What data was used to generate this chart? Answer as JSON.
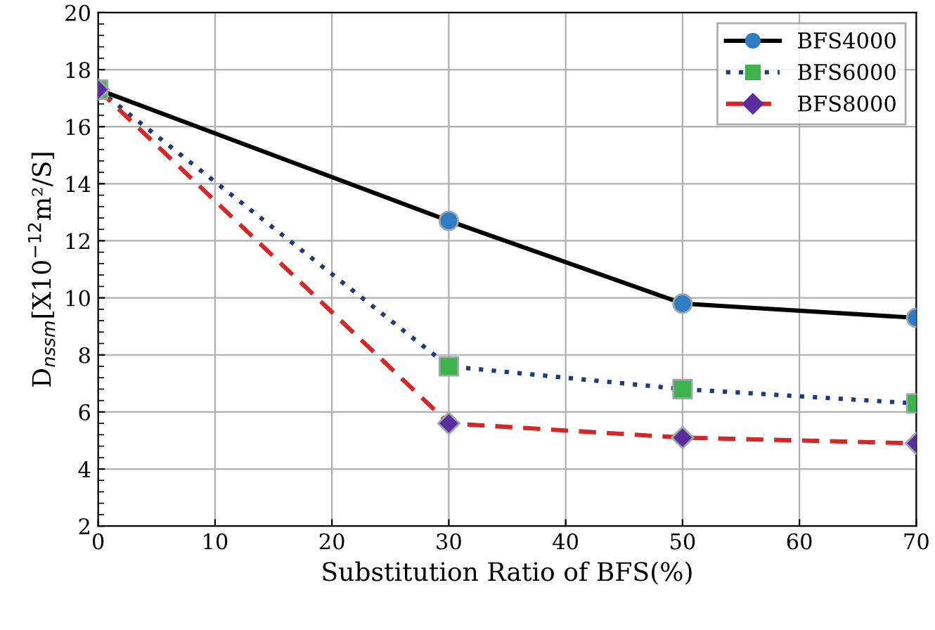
{
  "chart_data": {
    "type": "line",
    "xlabel": "Substitution Ratio of BFS(%)",
    "ylabel": "D$_{nssm}$[X10$^{−12}$m²/S]",
    "x": [
      0,
      30,
      50,
      70
    ],
    "series": [
      {
        "name": "BFS4000",
        "color": "#000000",
        "colors": [
          "#2e7cc4",
          "#2e7cc4",
          "#2e7cc4",
          "#2e7cc4"
        ],
        "marker": "circle",
        "line_style": "solid",
        "values": [
          17.3,
          12.7,
          9.8,
          9.3
        ]
      },
      {
        "name": "BFS6000",
        "color": "#1f3a7a",
        "colors": [
          "#3cb44b",
          "#3cb44b",
          "#3cb44b",
          "#3cb44b"
        ],
        "marker": "square",
        "line_style": "dotted",
        "values": [
          17.3,
          7.6,
          6.8,
          6.3
        ]
      },
      {
        "name": "BFS8000",
        "color": "#d62728",
        "colors": [
          "#5b2d9e",
          "#5b2d9e",
          "#5b2d9e",
          "#5b2d9e"
        ],
        "marker": "diamond",
        "line_style": "dashed",
        "values": [
          17.3,
          5.6,
          5.1,
          4.9
        ]
      }
    ],
    "xlim": [
      0,
      70
    ],
    "xticks": [
      0,
      10,
      20,
      30,
      40,
      50,
      60,
      70
    ],
    "ylim": [
      2,
      20
    ],
    "yticks": [
      2,
      4,
      6,
      8,
      10,
      12,
      14,
      16,
      18,
      20
    ],
    "grid": true,
    "legend": "top right"
  }
}
